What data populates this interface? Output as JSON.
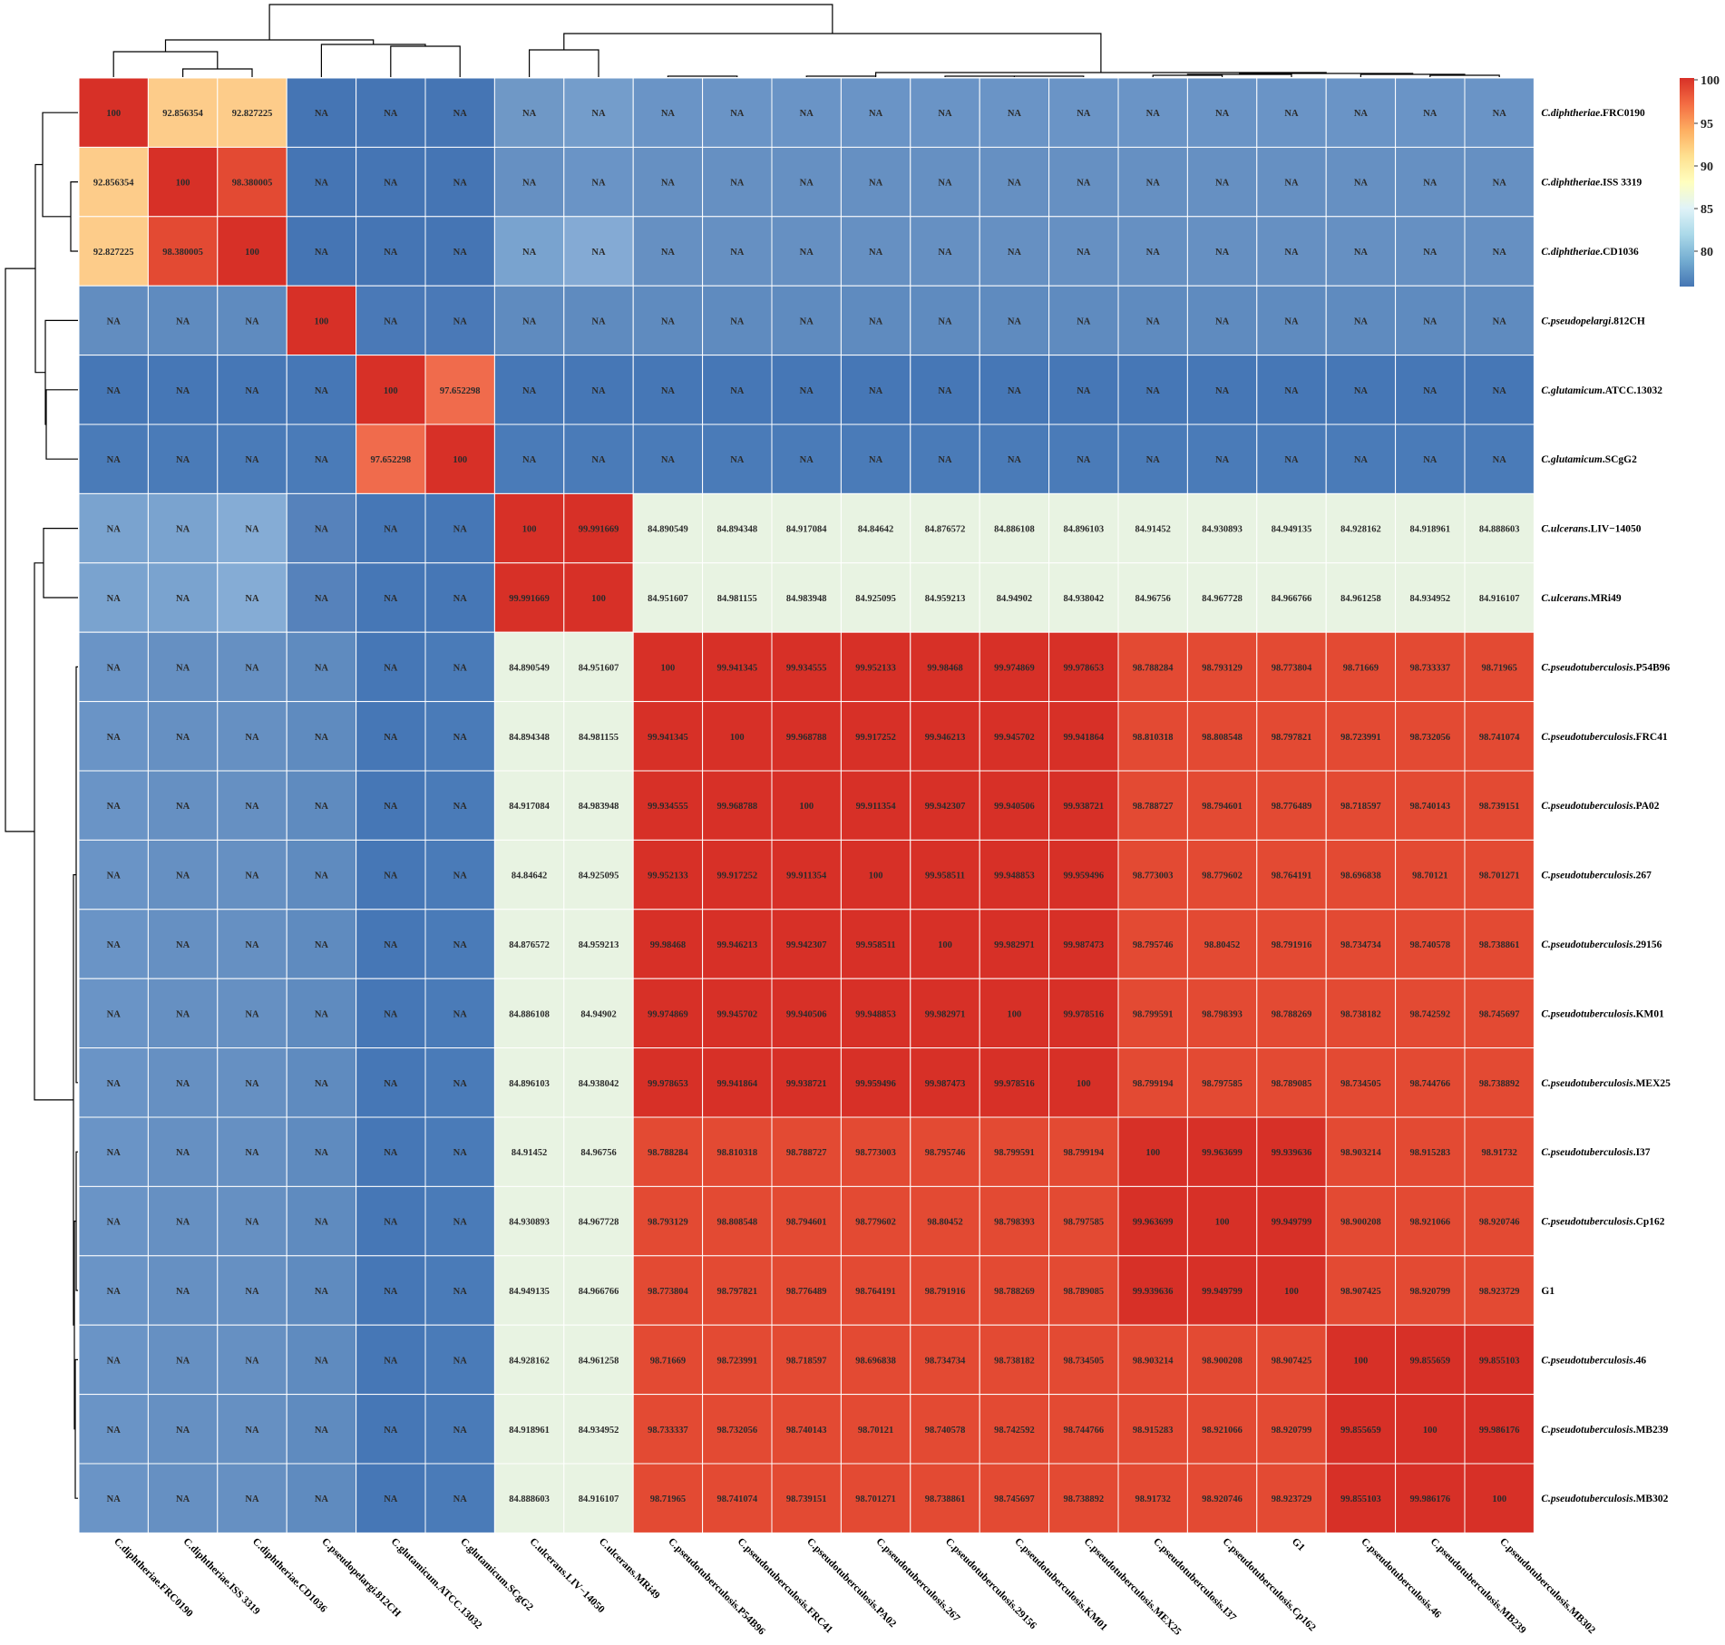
{
  "chart_data": {
    "type": "heatmap",
    "labels": [
      "C.diphtheriae.FRC0190",
      "C.diphtheriae.ISS 3319",
      "C.diphtheriae.CD1036",
      "C.pseudopelargi.812CH",
      "C.glutamicum.ATCC.13032",
      "C.glutamicum.SCgG2",
      "C.ulcerans.LIV−14050",
      "C.ulcerans.MRi49",
      "C.pseudotuberculosis.P54B96",
      "C.pseudotuberculosis.FRC41",
      "C.pseudotuberculosis.PA02",
      "C.pseudotuberculosis.267",
      "C.pseudotuberculosis.29156",
      "C.pseudotuberculosis.KM01",
      "C.pseudotuberculosis.MEX25",
      "C.pseudotuberculosis.I37",
      "C.pseudotuberculosis.Cp162",
      "G1",
      "C.pseudotuberculosis.46",
      "C.pseudotuberculosis.MB239",
      "C.pseudotuberculosis.MB302"
    ],
    "row_label_parts": [
      {
        "genus": "C.diphtheriae",
        "strain": ".FRC0190"
      },
      {
        "genus": "C.diphtheriae",
        "strain": ".ISS 3319"
      },
      {
        "genus": "C.diphtheriae",
        "strain": ".CD1036"
      },
      {
        "genus": "C.pseudopelargi",
        "strain": ".812CH"
      },
      {
        "genus": "C.glutamicum",
        "strain": ".ATCC.13032"
      },
      {
        "genus": "C.glutamicum",
        "strain": ".SCgG2"
      },
      {
        "genus": "C.ulcerans",
        "strain": ".LIV−14050"
      },
      {
        "genus": "C.ulcerans",
        "strain": ".MRi49"
      },
      {
        "genus": "C.pseudotuberculosis",
        "strain": ".P54B96"
      },
      {
        "genus": "C.pseudotuberculosis",
        "strain": ".FRC41"
      },
      {
        "genus": "C.pseudotuberculosis",
        "strain": ".PA02"
      },
      {
        "genus": "C.pseudotuberculosis",
        "strain": ".267"
      },
      {
        "genus": "C.pseudotuberculosis",
        "strain": ".29156"
      },
      {
        "genus": "C.pseudotuberculosis",
        "strain": ".KM01"
      },
      {
        "genus": "C.pseudotuberculosis",
        "strain": ".MEX25"
      },
      {
        "genus": "C.pseudotuberculosis",
        "strain": ".I37"
      },
      {
        "genus": "C.pseudotuberculosis",
        "strain": ".Cp162"
      },
      {
        "genus": "",
        "strain": "G1"
      },
      {
        "genus": "C.pseudotuberculosis",
        "strain": ".46"
      },
      {
        "genus": "C.pseudotuberculosis",
        "strain": ".MB239"
      },
      {
        "genus": "C.pseudotuberculosis",
        "strain": ".MB302"
      }
    ],
    "values": [
      [
        "100",
        "92.856354",
        "92.827225",
        "NA",
        "NA",
        "NA",
        "NA",
        "NA",
        "NA",
        "NA",
        "NA",
        "NA",
        "NA",
        "NA",
        "NA",
        "NA",
        "NA",
        "NA",
        "NA",
        "NA",
        "NA"
      ],
      [
        "92.856354",
        "100",
        "98.380005",
        "NA",
        "NA",
        "NA",
        "NA",
        "NA",
        "NA",
        "NA",
        "NA",
        "NA",
        "NA",
        "NA",
        "NA",
        "NA",
        "NA",
        "NA",
        "NA",
        "NA",
        "NA"
      ],
      [
        "92.827225",
        "98.380005",
        "100",
        "NA",
        "NA",
        "NA",
        "NA",
        "NA",
        "NA",
        "NA",
        "NA",
        "NA",
        "NA",
        "NA",
        "NA",
        "NA",
        "NA",
        "NA",
        "NA",
        "NA",
        "NA"
      ],
      [
        "NA",
        "NA",
        "NA",
        "100",
        "NA",
        "NA",
        "NA",
        "NA",
        "NA",
        "NA",
        "NA",
        "NA",
        "NA",
        "NA",
        "NA",
        "NA",
        "NA",
        "NA",
        "NA",
        "NA",
        "NA"
      ],
      [
        "NA",
        "NA",
        "NA",
        "NA",
        "100",
        "97.652298",
        "NA",
        "NA",
        "NA",
        "NA",
        "NA",
        "NA",
        "NA",
        "NA",
        "NA",
        "NA",
        "NA",
        "NA",
        "NA",
        "NA",
        "NA"
      ],
      [
        "NA",
        "NA",
        "NA",
        "NA",
        "97.652298",
        "100",
        "NA",
        "NA",
        "NA",
        "NA",
        "NA",
        "NA",
        "NA",
        "NA",
        "NA",
        "NA",
        "NA",
        "NA",
        "NA",
        "NA",
        "NA"
      ],
      [
        "NA",
        "NA",
        "NA",
        "NA",
        "NA",
        "NA",
        "100",
        "99.991669",
        "84.890549",
        "84.894348",
        "84.917084",
        "84.84642",
        "84.876572",
        "84.886108",
        "84.896103",
        "84.91452",
        "84.930893",
        "84.949135",
        "84.928162",
        "84.918961",
        "84.888603"
      ],
      [
        "NA",
        "NA",
        "NA",
        "NA",
        "NA",
        "NA",
        "99.991669",
        "100",
        "84.951607",
        "84.981155",
        "84.983948",
        "84.925095",
        "84.959213",
        "84.94902",
        "84.938042",
        "84.96756",
        "84.967728",
        "84.966766",
        "84.961258",
        "84.934952",
        "84.916107"
      ],
      [
        "NA",
        "NA",
        "NA",
        "NA",
        "NA",
        "NA",
        "84.890549",
        "84.951607",
        "100",
        "99.941345",
        "99.934555",
        "99.952133",
        "99.98468",
        "99.974869",
        "99.978653",
        "98.788284",
        "98.793129",
        "98.773804",
        "98.71669",
        "98.733337",
        "98.71965"
      ],
      [
        "NA",
        "NA",
        "NA",
        "NA",
        "NA",
        "NA",
        "84.894348",
        "84.981155",
        "99.941345",
        "100",
        "99.968788",
        "99.917252",
        "99.946213",
        "99.945702",
        "99.941864",
        "98.810318",
        "98.808548",
        "98.797821",
        "98.723991",
        "98.732056",
        "98.741074"
      ],
      [
        "NA",
        "NA",
        "NA",
        "NA",
        "NA",
        "NA",
        "84.917084",
        "84.983948",
        "99.934555",
        "99.968788",
        "100",
        "99.911354",
        "99.942307",
        "99.940506",
        "99.938721",
        "98.788727",
        "98.794601",
        "98.776489",
        "98.718597",
        "98.740143",
        "98.739151"
      ],
      [
        "NA",
        "NA",
        "NA",
        "NA",
        "NA",
        "NA",
        "84.84642",
        "84.925095",
        "99.952133",
        "99.917252",
        "99.911354",
        "100",
        "99.958511",
        "99.948853",
        "99.959496",
        "98.773003",
        "98.779602",
        "98.764191",
        "98.696838",
        "98.70121",
        "98.701271"
      ],
      [
        "NA",
        "NA",
        "NA",
        "NA",
        "NA",
        "NA",
        "84.876572",
        "84.959213",
        "99.98468",
        "99.946213",
        "99.942307",
        "99.958511",
        "100",
        "99.982971",
        "99.987473",
        "98.795746",
        "98.80452",
        "98.791916",
        "98.734734",
        "98.740578",
        "98.738861"
      ],
      [
        "NA",
        "NA",
        "NA",
        "NA",
        "NA",
        "NA",
        "84.886108",
        "84.94902",
        "99.974869",
        "99.945702",
        "99.940506",
        "99.948853",
        "99.982971",
        "100",
        "99.978516",
        "98.799591",
        "98.798393",
        "98.788269",
        "98.738182",
        "98.742592",
        "98.745697"
      ],
      [
        "NA",
        "NA",
        "NA",
        "NA",
        "NA",
        "NA",
        "84.896103",
        "84.938042",
        "99.978653",
        "99.941864",
        "99.938721",
        "99.959496",
        "99.987473",
        "99.978516",
        "100",
        "98.799194",
        "98.797585",
        "98.789085",
        "98.734505",
        "98.744766",
        "98.738892"
      ],
      [
        "NA",
        "NA",
        "NA",
        "NA",
        "NA",
        "NA",
        "84.91452",
        "84.96756",
        "98.788284",
        "98.810318",
        "98.788727",
        "98.773003",
        "98.795746",
        "98.799591",
        "98.799194",
        "100",
        "99.963699",
        "99.939636",
        "98.903214",
        "98.915283",
        "98.91732"
      ],
      [
        "NA",
        "NA",
        "NA",
        "NA",
        "NA",
        "NA",
        "84.930893",
        "84.967728",
        "98.793129",
        "98.808548",
        "98.794601",
        "98.779602",
        "98.80452",
        "98.798393",
        "98.797585",
        "99.963699",
        "100",
        "99.949799",
        "98.900208",
        "98.921066",
        "98.920746"
      ],
      [
        "NA",
        "NA",
        "NA",
        "NA",
        "NA",
        "NA",
        "84.949135",
        "84.966766",
        "98.773804",
        "98.797821",
        "98.776489",
        "98.764191",
        "98.791916",
        "98.788269",
        "98.789085",
        "99.939636",
        "99.949799",
        "100",
        "98.907425",
        "98.920799",
        "98.923729"
      ],
      [
        "NA",
        "NA",
        "NA",
        "NA",
        "NA",
        "NA",
        "84.928162",
        "84.961258",
        "98.71669",
        "98.723991",
        "98.718597",
        "98.696838",
        "98.734734",
        "98.738182",
        "98.734505",
        "98.903214",
        "98.900208",
        "98.907425",
        "100",
        "99.855659",
        "99.855103"
      ],
      [
        "NA",
        "NA",
        "NA",
        "NA",
        "NA",
        "NA",
        "84.918961",
        "84.934952",
        "98.733337",
        "98.732056",
        "98.740143",
        "98.70121",
        "98.740578",
        "98.742592",
        "98.744766",
        "98.915283",
        "98.921066",
        "98.920799",
        "99.855659",
        "100",
        "99.986176"
      ],
      [
        "NA",
        "NA",
        "NA",
        "NA",
        "NA",
        "NA",
        "84.888603",
        "84.916107",
        "98.71965",
        "98.741074",
        "98.739151",
        "98.701271",
        "98.738861",
        "98.745697",
        "98.738892",
        "98.91732",
        "98.920746",
        "98.923729",
        "99.855103",
        "99.986176",
        "100"
      ]
    ],
    "na_colors": [
      [
        "#d73027",
        "#fdcc8a",
        "#fdcc8a",
        "#4575b4",
        "#4575b4",
        "#4575b4",
        "#6f98c6",
        "#749dcb",
        "#6a94c6",
        "#6a94c6",
        "#6a94c6",
        "#6a94c6",
        "#6a94c6",
        "#6a94c6",
        "#6a94c6",
        "#6a94c6",
        "#6a94c6",
        "#6a94c6",
        "#6a94c6",
        "#6a94c6",
        "#6a94c6"
      ],
      [
        "#fdcc8a",
        "#d73027",
        "#e34a33",
        "#4575b4",
        "#4575b4",
        "#4575b4",
        "#6690c2",
        "#6a94c6",
        "#6690c2",
        "#6690c2",
        "#6690c2",
        "#6690c2",
        "#6690c2",
        "#6690c2",
        "#6690c2",
        "#6690c2",
        "#6690c2",
        "#6690c2",
        "#6690c2",
        "#6690c2",
        "#6690c2"
      ],
      [
        "#fdcc8a",
        "#e34a33",
        "#d73027",
        "#4575b4",
        "#4575b4",
        "#4575b4",
        "#79a3cf",
        "#84aad4",
        "#6690c2",
        "#6690c2",
        "#6690c2",
        "#6690c2",
        "#6690c2",
        "#6690c2",
        "#6690c2",
        "#6690c2",
        "#6690c2",
        "#6690c2",
        "#6690c2",
        "#6690c2",
        "#6690c2"
      ],
      [
        "#628dc0",
        "#5f8bbf",
        "#5f8bbf",
        "#d73027",
        "#4a79b7",
        "#4a79b7",
        "#5f8bbf",
        "#5f8bbf",
        "#5f8bbf",
        "#5f8bbf",
        "#5f8bbf",
        "#5f8bbf",
        "#5f8bbf",
        "#5f8bbf",
        "#5f8bbf",
        "#5f8bbf",
        "#5f8bbf",
        "#5f8bbf",
        "#5f8bbf",
        "#5f8bbf",
        "#5f8bbf"
      ],
      [
        "#4677b6",
        "#4677b6",
        "#4677b6",
        "#4677b6",
        "#d73027",
        "#f06b4c",
        "#4677b6",
        "#4677b6",
        "#4677b6",
        "#4677b6",
        "#4677b6",
        "#4677b6",
        "#4677b6",
        "#4677b6",
        "#4677b6",
        "#4677b6",
        "#4677b6",
        "#4677b6",
        "#4677b6",
        "#4677b6",
        "#4677b6"
      ],
      [
        "#4a7bb8",
        "#4a7bb8",
        "#4a7bb8",
        "#4a7bb8",
        "#f06b4c",
        "#d73027",
        "#4a7bb8",
        "#4a7bb8",
        "#4a7bb8",
        "#4a7bb8",
        "#4a7bb8",
        "#4a7bb8",
        "#4a7bb8",
        "#4a7bb8",
        "#4a7bb8",
        "#4a7bb8",
        "#4a7bb8",
        "#4a7bb8",
        "#4a7bb8",
        "#4a7bb8",
        "#4a7bb8"
      ],
      [
        "#7aa3cf",
        "#7aa3cf",
        "#85acd5",
        "#5682bb",
        "#4677b6",
        "#4677b6",
        "#d73027",
        "#d73027",
        "#e8f3e2",
        "#e8f3e2",
        "#e8f3e2",
        "#e8f3e2",
        "#e8f3e2",
        "#e8f3e2",
        "#e8f3e2",
        "#e8f3e2",
        "#e8f3e2",
        "#e8f3e2",
        "#e8f3e2",
        "#e8f3e2",
        "#e8f3e2"
      ],
      [
        "#7aa3cf",
        "#7aa3cf",
        "#85acd5",
        "#5682bb",
        "#4677b6",
        "#4677b6",
        "#d73027",
        "#d73027",
        "#e8f3e2",
        "#e8f3e2",
        "#e8f3e2",
        "#e8f3e2",
        "#e8f3e2",
        "#e8f3e2",
        "#e8f3e2",
        "#e8f3e2",
        "#e8f3e2",
        "#e8f3e2",
        "#e8f3e2",
        "#e8f3e2",
        "#e8f3e2"
      ],
      [
        "#6a94c6",
        "#6690c2",
        "#6690c2",
        "#5f8bbf",
        "#4677b6",
        "#4a7bb8",
        "#e8f3e2",
        "#e8f3e2",
        "#d73027",
        "#d73027",
        "#d73027",
        "#d73027",
        "#d73027",
        "#d73027",
        "#d73027",
        "#e34a33",
        "#e34a33",
        "#e34a33",
        "#e34a33",
        "#e34a33",
        "#e34a33"
      ],
      [
        "#6a94c6",
        "#6690c2",
        "#6690c2",
        "#5f8bbf",
        "#4677b6",
        "#4a7bb8",
        "#e8f3e2",
        "#e8f3e2",
        "#d73027",
        "#d73027",
        "#d73027",
        "#d73027",
        "#d73027",
        "#d73027",
        "#d73027",
        "#e34a33",
        "#e34a33",
        "#e34a33",
        "#e34a33",
        "#e34a33",
        "#e34a33"
      ],
      [
        "#6a94c6",
        "#6690c2",
        "#6690c2",
        "#5f8bbf",
        "#4677b6",
        "#4a7bb8",
        "#e8f3e2",
        "#e8f3e2",
        "#d73027",
        "#d73027",
        "#d73027",
        "#d73027",
        "#d73027",
        "#d73027",
        "#d73027",
        "#e34a33",
        "#e34a33",
        "#e34a33",
        "#e34a33",
        "#e34a33",
        "#e34a33"
      ],
      [
        "#6a94c6",
        "#6690c2",
        "#6690c2",
        "#5f8bbf",
        "#4677b6",
        "#4a7bb8",
        "#e8f3e2",
        "#e8f3e2",
        "#d73027",
        "#d73027",
        "#d73027",
        "#d73027",
        "#d73027",
        "#d73027",
        "#d73027",
        "#e34a33",
        "#e34a33",
        "#e34a33",
        "#e34a33",
        "#e34a33",
        "#e34a33"
      ],
      [
        "#6a94c6",
        "#6690c2",
        "#6690c2",
        "#5f8bbf",
        "#4677b6",
        "#4a7bb8",
        "#e8f3e2",
        "#e8f3e2",
        "#d73027",
        "#d73027",
        "#d73027",
        "#d73027",
        "#d73027",
        "#d73027",
        "#d73027",
        "#e34a33",
        "#e34a33",
        "#e34a33",
        "#e34a33",
        "#e34a33",
        "#e34a33"
      ],
      [
        "#6a94c6",
        "#6690c2",
        "#6690c2",
        "#5f8bbf",
        "#4677b6",
        "#4a7bb8",
        "#e8f3e2",
        "#e8f3e2",
        "#d73027",
        "#d73027",
        "#d73027",
        "#d73027",
        "#d73027",
        "#d73027",
        "#d73027",
        "#e34a33",
        "#e34a33",
        "#e34a33",
        "#e34a33",
        "#e34a33",
        "#e34a33"
      ],
      [
        "#6a94c6",
        "#6690c2",
        "#6690c2",
        "#5f8bbf",
        "#4677b6",
        "#4a7bb8",
        "#e8f3e2",
        "#e8f3e2",
        "#d73027",
        "#d73027",
        "#d73027",
        "#d73027",
        "#d73027",
        "#d73027",
        "#d73027",
        "#e34a33",
        "#e34a33",
        "#e34a33",
        "#e34a33",
        "#e34a33",
        "#e34a33"
      ],
      [
        "#6a94c6",
        "#6690c2",
        "#6690c2",
        "#5f8bbf",
        "#4677b6",
        "#4a7bb8",
        "#e8f3e2",
        "#e8f3e2",
        "#e34a33",
        "#e34a33",
        "#e34a33",
        "#e34a33",
        "#e34a33",
        "#e34a33",
        "#e34a33",
        "#d73027",
        "#d73027",
        "#d73027",
        "#e34a33",
        "#e34a33",
        "#e34a33"
      ],
      [
        "#6a94c6",
        "#6690c2",
        "#6690c2",
        "#5f8bbf",
        "#4677b6",
        "#4a7bb8",
        "#e8f3e2",
        "#e8f3e2",
        "#e34a33",
        "#e34a33",
        "#e34a33",
        "#e34a33",
        "#e34a33",
        "#e34a33",
        "#e34a33",
        "#d73027",
        "#d73027",
        "#d73027",
        "#e34a33",
        "#e34a33",
        "#e34a33"
      ],
      [
        "#6a94c6",
        "#6690c2",
        "#6690c2",
        "#5f8bbf",
        "#4677b6",
        "#4a7bb8",
        "#e8f3e2",
        "#e8f3e2",
        "#e34a33",
        "#e34a33",
        "#e34a33",
        "#e34a33",
        "#e34a33",
        "#e34a33",
        "#e34a33",
        "#d73027",
        "#d73027",
        "#d73027",
        "#e34a33",
        "#e34a33",
        "#e34a33"
      ],
      [
        "#6a94c6",
        "#6690c2",
        "#6690c2",
        "#5f8bbf",
        "#4677b6",
        "#4a7bb8",
        "#e8f3e2",
        "#e8f3e2",
        "#e34a33",
        "#e34a33",
        "#e34a33",
        "#e34a33",
        "#e34a33",
        "#e34a33",
        "#e34a33",
        "#e34a33",
        "#e34a33",
        "#e34a33",
        "#d73027",
        "#d73027",
        "#d73027"
      ],
      [
        "#6a94c6",
        "#6690c2",
        "#6690c2",
        "#5f8bbf",
        "#4677b6",
        "#4a7bb8",
        "#e8f3e2",
        "#e8f3e2",
        "#e34a33",
        "#e34a33",
        "#e34a33",
        "#e34a33",
        "#e34a33",
        "#e34a33",
        "#e34a33",
        "#e34a33",
        "#e34a33",
        "#e34a33",
        "#d73027",
        "#d73027",
        "#d73027"
      ],
      [
        "#6a94c6",
        "#6690c2",
        "#6690c2",
        "#5f8bbf",
        "#4677b6",
        "#4a7bb8",
        "#e8f3e2",
        "#e8f3e2",
        "#e34a33",
        "#e34a33",
        "#e34a33",
        "#e34a33",
        "#e34a33",
        "#e34a33",
        "#e34a33",
        "#e34a33",
        "#e34a33",
        "#e34a33",
        "#d73027",
        "#d73027",
        "#d73027"
      ]
    ],
    "legend": {
      "ticks": [
        "100",
        "95",
        "90",
        "85",
        "80"
      ],
      "colors": [
        "#d73027",
        "#f46d43",
        "#fdae61",
        "#fee090",
        "#ffffbf",
        "#e0f3f8",
        "#abd9e9",
        "#74add1",
        "#4575b4"
      ]
    }
  }
}
